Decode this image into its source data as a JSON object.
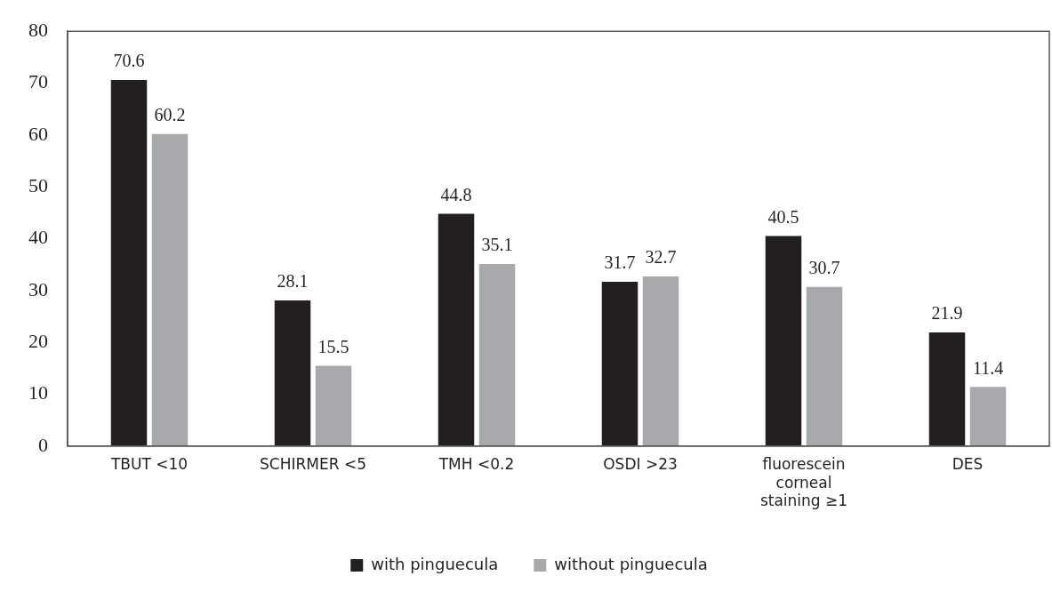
{
  "chart_data": {
    "type": "bar",
    "categories": [
      "TBUT <10",
      "SCHIRMER <5",
      "TMH <0.2",
      "OSDI >23",
      "fluorescein corneal staining ≥1",
      "DES"
    ],
    "series": [
      {
        "name": "with pinguecula",
        "color": "#231f20",
        "values": [
          70.6,
          28.1,
          44.8,
          31.7,
          40.5,
          21.9
        ]
      },
      {
        "name": "without pinguecula",
        "color": "#a7a9ac",
        "values": [
          60.2,
          15.5,
          35.1,
          32.7,
          30.7,
          11.4
        ]
      }
    ],
    "ylim": [
      0,
      80
    ],
    "yticks": [
      0,
      10,
      20,
      30,
      40,
      50,
      60,
      70,
      80
    ],
    "grid": false,
    "legend": "bottom",
    "data_labels": true
  }
}
